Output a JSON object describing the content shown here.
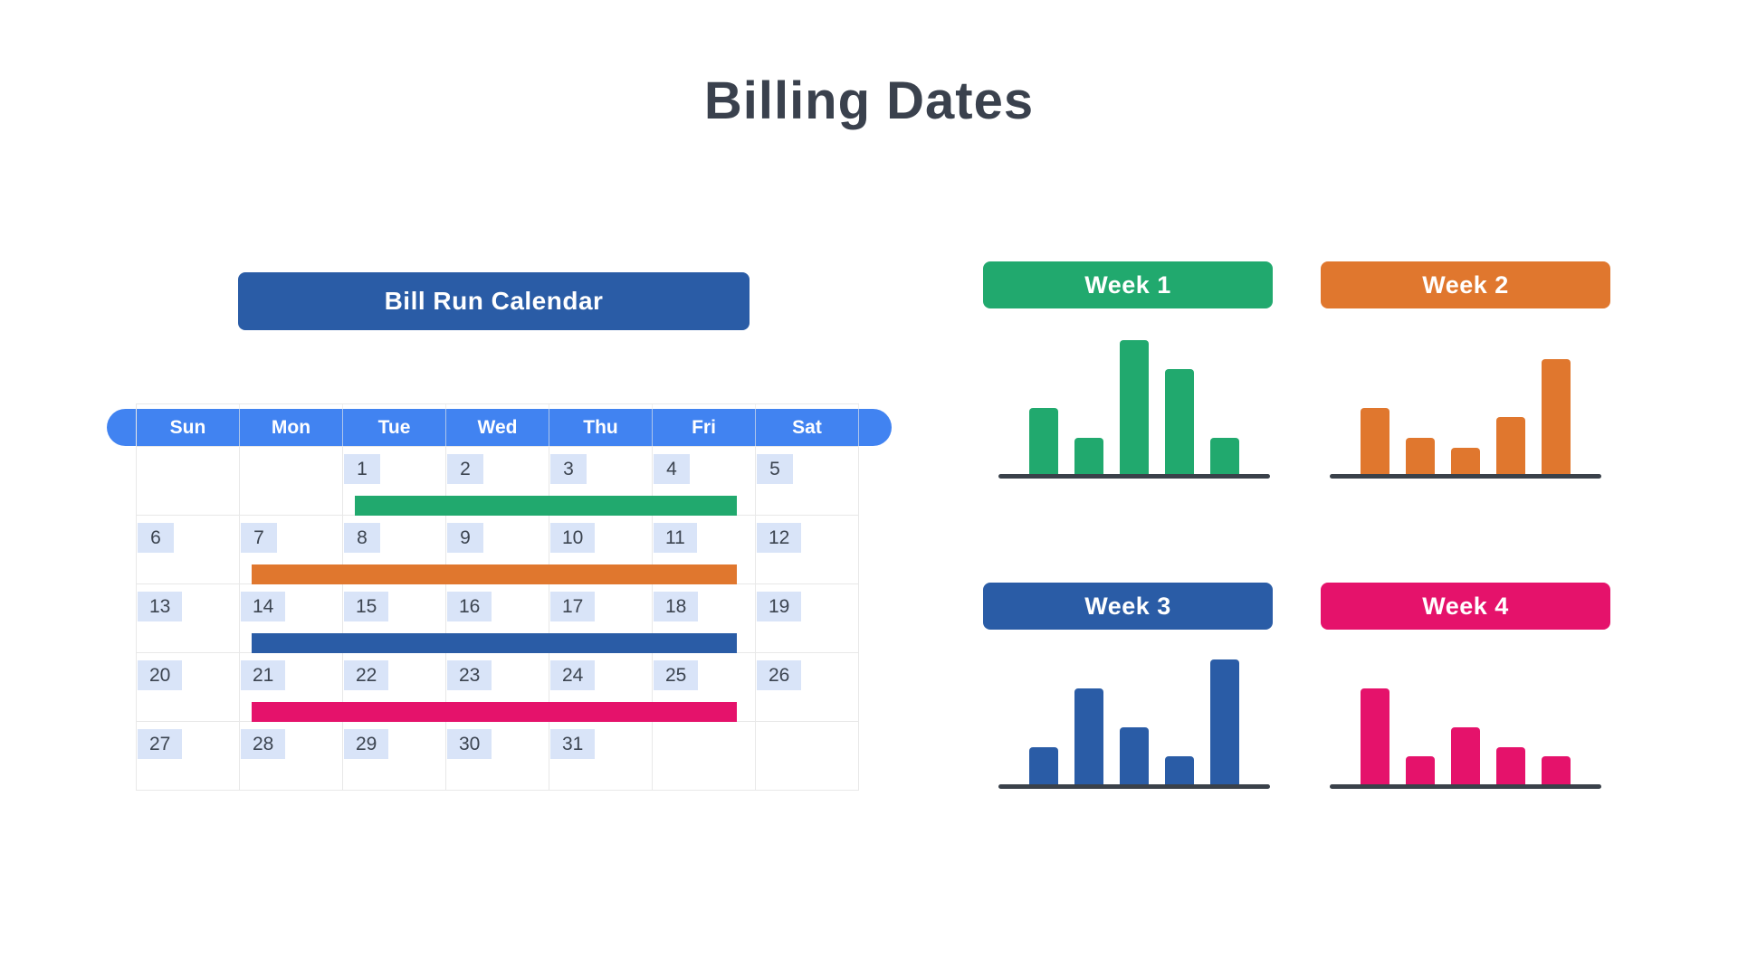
{
  "title": "Billing Dates",
  "colors": {
    "title_text": "#3A414D",
    "dark_blue": "#2A5CA6",
    "band_blue": "#4183F1",
    "green": "#21A96E",
    "orange": "#E0772E",
    "pink": "#E5126B",
    "badge_bg": "#D9E4F8",
    "date_text": "#3C4450",
    "grid_line": "#E8E8E8",
    "axis_line": "#3A414A"
  },
  "calendar": {
    "header": "Bill Run Calendar",
    "day_names": [
      "Sun",
      "Mon",
      "Tue",
      "Wed",
      "Thu",
      "Fri",
      "Sat"
    ],
    "weeks": [
      [
        "",
        "",
        "1",
        "2",
        "3",
        "4",
        "5"
      ],
      [
        "6",
        "7",
        "8",
        "9",
        "10",
        "11",
        "12"
      ],
      [
        "13",
        "14",
        "15",
        "16",
        "17",
        "18",
        "19"
      ],
      [
        "20",
        "21",
        "22",
        "23",
        "24",
        "25",
        "26"
      ],
      [
        "27",
        "28",
        "29",
        "30",
        "31",
        "",
        ""
      ]
    ],
    "bars": [
      {
        "label": "week-1-run",
        "row": 0,
        "start_col": 2,
        "end_col": 5,
        "start_day": "Tue",
        "end_day": "Fri",
        "dates": "1-4",
        "color": "#21A96E"
      },
      {
        "label": "week-2-run",
        "row": 1,
        "start_col": 1,
        "end_col": 5,
        "start_day": "Mon",
        "end_day": "Fri",
        "dates": "7-11",
        "color": "#E0772E"
      },
      {
        "label": "week-3-run",
        "row": 2,
        "start_col": 1,
        "end_col": 5,
        "start_day": "Mon",
        "end_day": "Fri",
        "dates": "14-18",
        "color": "#2A5CA6"
      },
      {
        "label": "week-4-run",
        "row": 3,
        "start_col": 1,
        "end_col": 5,
        "start_day": "Mon",
        "end_day": "Fri",
        "dates": "21-25",
        "color": "#E5126B"
      }
    ]
  },
  "chart_data": [
    {
      "type": "bar",
      "title": "Week 1",
      "color": "#21A96E",
      "values": [
        73,
        40,
        148,
        116,
        40
      ],
      "units": "estimated bar heights, px (no axis labels shown)",
      "ylim": [
        0,
        150
      ],
      "grid": false,
      "legend": "none"
    },
    {
      "type": "bar",
      "title": "Week 2",
      "color": "#E0772E",
      "values": [
        73,
        40,
        29,
        63,
        127
      ],
      "units": "estimated bar heights, px (no axis labels shown)",
      "ylim": [
        0,
        150
      ],
      "grid": false,
      "legend": "none"
    },
    {
      "type": "bar",
      "title": "Week 3",
      "color": "#2A5CA6",
      "values": [
        41,
        106,
        63,
        31,
        138
      ],
      "units": "estimated bar heights, px (no axis labels shown)",
      "ylim": [
        0,
        150
      ],
      "grid": false,
      "legend": "none"
    },
    {
      "type": "bar",
      "title": "Week 4",
      "color": "#E5126B",
      "values": [
        106,
        31,
        63,
        41,
        31
      ],
      "units": "estimated bar heights, px (no axis labels shown)",
      "ylim": [
        0,
        150
      ],
      "grid": false,
      "legend": "none"
    }
  ]
}
